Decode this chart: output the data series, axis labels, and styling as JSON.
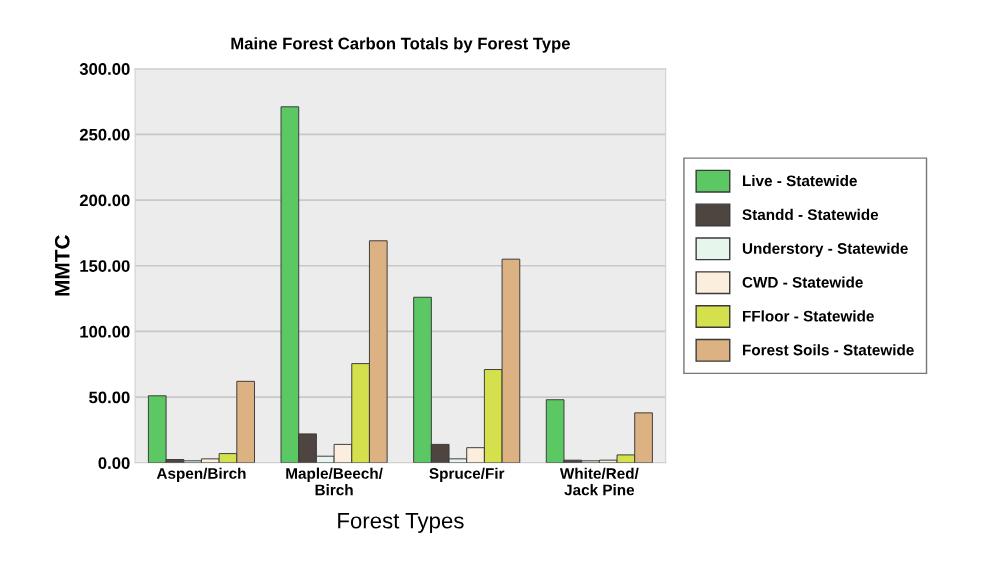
{
  "chart_data": {
    "type": "bar",
    "title": "Maine Forest Carbon Totals by Forest Type",
    "xlabel": "Forest Types",
    "ylabel": "MMTC",
    "categories": [
      "Aspen/Birch",
      "Maple/Beech/\nBirch",
      "Spruce/Fir",
      "White/Red/\nJack Pine"
    ],
    "series": [
      {
        "name": "Live - Statewide",
        "color": "#5cc864",
        "values": [
          51,
          271,
          126,
          48
        ]
      },
      {
        "name": "Standd - Statewide",
        "color": "#4e4440",
        "values": [
          2.5,
          22,
          14,
          2
        ]
      },
      {
        "name": "Understory - Statewide",
        "color": "#e6f6ec",
        "values": [
          1.5,
          5,
          3,
          1.5
        ]
      },
      {
        "name": "CWD - Statewide",
        "color": "#fbeedc",
        "values": [
          3,
          14,
          11.5,
          2
        ]
      },
      {
        "name": "FFloor - Statewide",
        "color": "#d4e04c",
        "values": [
          7,
          75.5,
          71,
          6
        ]
      },
      {
        "name": "Forest Soils - Statewide",
        "color": "#dcb282",
        "values": [
          62,
          169,
          155,
          38
        ]
      }
    ],
    "ylim": [
      0,
      300
    ],
    "yticks": [
      {
        "value": 0,
        "label": "0.00"
      },
      {
        "value": 50,
        "label": "50.00"
      },
      {
        "value": 100,
        "label": "100.00"
      },
      {
        "value": 150,
        "label": "150.00"
      },
      {
        "value": 200,
        "label": "200.00"
      },
      {
        "value": 250,
        "label": "250.00"
      },
      {
        "value": 300,
        "label": "300.00"
      }
    ],
    "grid": "y",
    "legend": "right"
  }
}
